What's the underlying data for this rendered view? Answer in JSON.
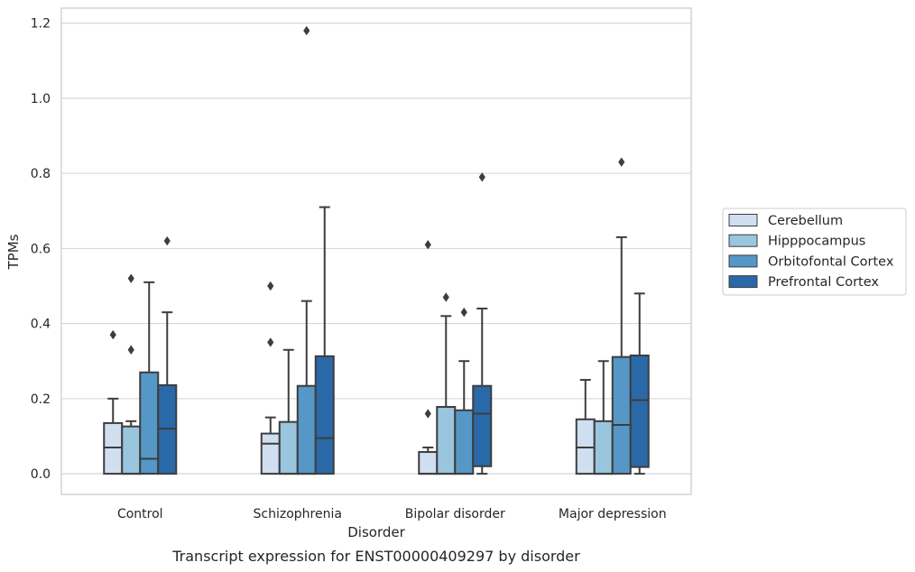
{
  "chart_data": {
    "type": "box",
    "title": "",
    "caption": "Transcript expression for ENST00000409297 by disorder",
    "xlabel": "Disorder",
    "ylabel": "TPMs",
    "ylim": [
      -0.055,
      1.24
    ],
    "yticks": [
      "0.0",
      "0.2",
      "0.4",
      "0.6",
      "0.8",
      "1.0",
      "1.2"
    ],
    "ytick_values": [
      0.0,
      0.2,
      0.4,
      0.6,
      0.8,
      1.0,
      1.2
    ],
    "grid": true,
    "legend_position": "right",
    "categories": [
      "Control",
      "Schizophrenia",
      "Bipolar disorder",
      "Major depression"
    ],
    "series": [
      {
        "name": "Cerebellum",
        "color": "#cfdff0",
        "boxes": [
          {
            "q1": 0.0,
            "median": 0.07,
            "q3": 0.135,
            "whisker_low": 0.0,
            "whisker_high": 0.2,
            "outliers": [
              0.37
            ]
          },
          {
            "q1": 0.0,
            "median": 0.08,
            "q3": 0.107,
            "whisker_low": 0.0,
            "whisker_high": 0.15,
            "outliers": [
              0.35,
              0.5
            ]
          },
          {
            "q1": 0.0,
            "median": 0.0,
            "q3": 0.058,
            "whisker_low": 0.0,
            "whisker_high": 0.07,
            "outliers": [
              0.16,
              0.61
            ]
          },
          {
            "q1": 0.0,
            "median": 0.07,
            "q3": 0.145,
            "whisker_low": 0.0,
            "whisker_high": 0.25,
            "outliers": []
          }
        ]
      },
      {
        "name": "Hipppocampus",
        "color": "#9ac5de",
        "boxes": [
          {
            "q1": 0.0,
            "median": 0.0,
            "q3": 0.126,
            "whisker_low": 0.0,
            "whisker_high": 0.14,
            "outliers": [
              0.33,
              0.52
            ]
          },
          {
            "q1": 0.0,
            "median": 0.0,
            "q3": 0.138,
            "whisker_low": 0.0,
            "whisker_high": 0.33,
            "outliers": []
          },
          {
            "q1": 0.0,
            "median": 0.0,
            "q3": 0.178,
            "whisker_low": 0.0,
            "whisker_high": 0.42,
            "outliers": [
              0.47
            ]
          },
          {
            "q1": 0.0,
            "median": 0.0,
            "q3": 0.14,
            "whisker_low": 0.0,
            "whisker_high": 0.3,
            "outliers": []
          }
        ]
      },
      {
        "name": "Orbitofontal Cortex",
        "color": "#5597c6",
        "boxes": [
          {
            "q1": 0.0,
            "median": 0.04,
            "q3": 0.27,
            "whisker_low": 0.0,
            "whisker_high": 0.51,
            "outliers": []
          },
          {
            "q1": 0.0,
            "median": 0.0,
            "q3": 0.234,
            "whisker_low": 0.0,
            "whisker_high": 0.46,
            "outliers": [
              1.18
            ]
          },
          {
            "q1": 0.0,
            "median": 0.0,
            "q3": 0.169,
            "whisker_low": 0.0,
            "whisker_high": 0.3,
            "outliers": [
              0.43
            ]
          },
          {
            "q1": 0.0,
            "median": 0.13,
            "q3": 0.311,
            "whisker_low": 0.0,
            "whisker_high": 0.63,
            "outliers": [
              0.83
            ]
          }
        ]
      },
      {
        "name": "Prefrontal Cortex",
        "color": "#2a69a8",
        "boxes": [
          {
            "q1": 0.0,
            "median": 0.12,
            "q3": 0.236,
            "whisker_low": 0.0,
            "whisker_high": 0.43,
            "outliers": [
              0.62
            ]
          },
          {
            "q1": 0.0,
            "median": 0.095,
            "q3": 0.313,
            "whisker_low": 0.0,
            "whisker_high": 0.71,
            "outliers": []
          },
          {
            "q1": 0.02,
            "median": 0.16,
            "q3": 0.234,
            "whisker_low": 0.0,
            "whisker_high": 0.44,
            "outliers": [
              0.79
            ]
          },
          {
            "q1": 0.018,
            "median": 0.196,
            "q3": 0.315,
            "whisker_low": 0.0,
            "whisker_high": 0.48,
            "outliers": []
          }
        ]
      }
    ]
  }
}
